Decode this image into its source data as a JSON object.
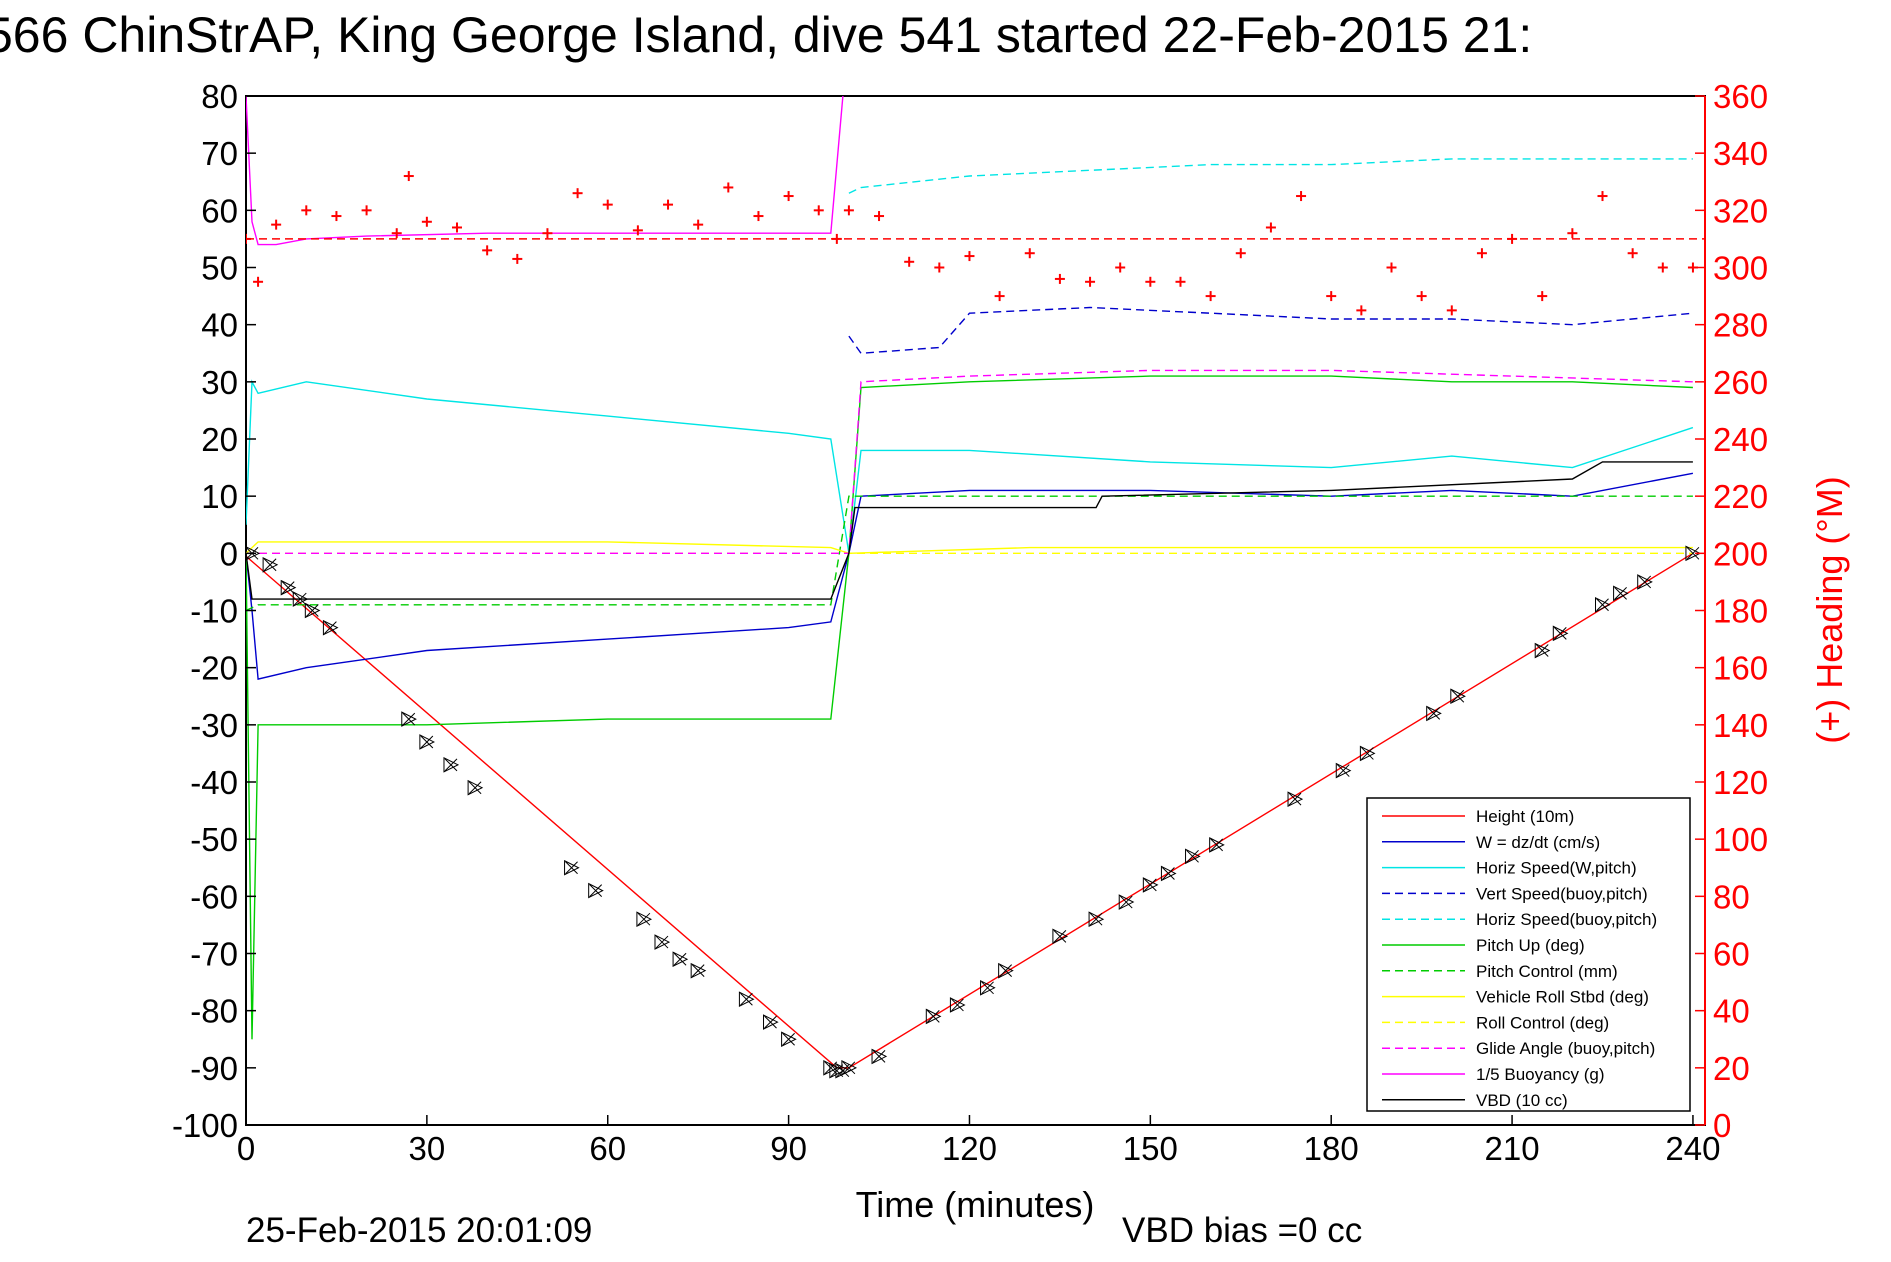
{
  "chart_data": {
    "type": "line",
    "title": "566 ChinStrAP, King George Island, dive 541 started 22-Feb-2015 21:",
    "xlabel": "Time (minutes)",
    "ylabel_right": "(+) Heading (°M)",
    "footer_date": "25-Feb-2015 20:01:09",
    "footer_bias": "VBD bias =0 cc",
    "xlim": [
      0,
      242
    ],
    "ylim": [
      -100,
      80
    ],
    "ylim_right": [
      0,
      360
    ],
    "x_ticks": [
      0,
      30,
      60,
      90,
      120,
      150,
      180,
      210,
      240
    ],
    "y_ticks": [
      80,
      70,
      60,
      50,
      40,
      30,
      20,
      10,
      0,
      -10,
      -20,
      -30,
      -40,
      -50,
      -60,
      -70,
      -80,
      -90,
      -100
    ],
    "y_ticks_right": [
      360,
      340,
      320,
      300,
      280,
      260,
      240,
      220,
      200,
      180,
      160,
      140,
      120,
      100,
      80,
      60,
      40,
      20,
      0
    ],
    "grid": false,
    "legend_position": "bottom-right",
    "series": [
      {
        "name": "Height (10m)",
        "color": "#ff0000",
        "style": "solid",
        "x": [
          0,
          98,
          100,
          240
        ],
        "y": [
          -0.5,
          -90,
          -90,
          0
        ]
      },
      {
        "name": "W = dz/dt (cm/s)",
        "color": "#0000cc",
        "style": "solid",
        "x": [
          0,
          1,
          2,
          10,
          30,
          60,
          90,
          97,
          100,
          102,
          120,
          150,
          180,
          200,
          220,
          240
        ],
        "y": [
          0,
          -10,
          -22,
          -20,
          -17,
          -15,
          -13,
          -12,
          0,
          10,
          11,
          11,
          10,
          11,
          10,
          14
        ]
      },
      {
        "name": "Horiz Speed(W,pitch)",
        "color": "#00e5e5",
        "style": "solid",
        "x": [
          0,
          1,
          2,
          10,
          30,
          60,
          90,
          97,
          100,
          102,
          120,
          150,
          180,
          200,
          220,
          240
        ],
        "y": [
          5,
          30,
          28,
          30,
          27,
          24,
          21,
          20,
          0,
          18,
          18,
          16,
          15,
          17,
          15,
          22
        ]
      },
      {
        "name": "Vert Speed(buoy,pitch)",
        "color": "#0000cc",
        "style": "dashed",
        "x": [
          100,
          102,
          115,
          120,
          140,
          160,
          180,
          200,
          220,
          240
        ],
        "y": [
          38,
          35,
          36,
          42,
          43,
          42,
          41,
          41,
          40,
          42
        ]
      },
      {
        "name": "Horiz Speed(buoy,pitch)",
        "color": "#00e5e5",
        "style": "dashed",
        "x": [
          100,
          102,
          120,
          140,
          160,
          180,
          200,
          220,
          240
        ],
        "y": [
          63,
          64,
          66,
          67,
          68,
          68,
          69,
          69,
          69
        ]
      },
      {
        "name": "Pitch Up (deg)",
        "color": "#00cc00",
        "style": "solid",
        "x": [
          0,
          1,
          2,
          10,
          30,
          60,
          90,
          97,
          100,
          102,
          120,
          150,
          180,
          200,
          220,
          240
        ],
        "y": [
          0,
          -85,
          -30,
          -30,
          -30,
          -29,
          -29,
          -29,
          0,
          29,
          30,
          31,
          31,
          30,
          30,
          29
        ]
      },
      {
        "name": "Pitch Control (mm)",
        "color": "#00cc00",
        "style": "dashed",
        "x": [
          0,
          2,
          97,
          100,
          240
        ],
        "y": [
          -10,
          -9,
          -9,
          10,
          10
        ]
      },
      {
        "name": "Vehicle Roll Stbd (deg)",
        "color": "#ffff00",
        "style": "solid",
        "x": [
          0,
          2,
          30,
          60,
          97,
          100,
          130,
          160,
          190,
          220,
          240
        ],
        "y": [
          0,
          2,
          2,
          2,
          1,
          0,
          1,
          1,
          1,
          1,
          1
        ]
      },
      {
        "name": "Roll Control (deg)",
        "color": "#ffff00",
        "style": "dashed",
        "x": [
          0,
          2,
          240
        ],
        "y": [
          0,
          0,
          0
        ]
      },
      {
        "name": "Glide Angle (buoy,pitch)",
        "color": "#ff00ff",
        "style": "dashed",
        "x": [
          0,
          97,
          100,
          102,
          120,
          150,
          180,
          210,
          240
        ],
        "y": [
          0,
          0,
          0,
          30,
          31,
          32,
          32,
          31,
          30
        ]
      },
      {
        "name": "1/5 Buoyancy (g)",
        "color": "#ff00ff",
        "style": "solid",
        "x": [
          0,
          1,
          2,
          5,
          10,
          20,
          40,
          97,
          99
        ],
        "y": [
          80,
          58,
          54,
          54,
          55,
          55.5,
          56,
          56,
          80
        ]
      },
      {
        "name": "VBD (10 cc)",
        "color": "#000000",
        "style": "solid",
        "x": [
          0,
          1,
          2,
          97,
          100,
          101,
          141,
          142,
          180,
          220,
          225,
          240
        ],
        "y": [
          0,
          -8,
          -8,
          -8,
          0,
          8,
          8,
          10,
          11,
          13,
          16,
          16
        ]
      }
    ],
    "heading_series": {
      "name": "Heading",
      "color": "#ff0000",
      "marker": "+",
      "target_heading": 310,
      "x": [
        0,
        2,
        5,
        10,
        15,
        20,
        25,
        27,
        30,
        35,
        40,
        45,
        50,
        55,
        60,
        65,
        70,
        75,
        80,
        85,
        90,
        95,
        98,
        100,
        105,
        110,
        115,
        120,
        125,
        130,
        135,
        140,
        145,
        150,
        155,
        160,
        165,
        170,
        175,
        180,
        185,
        190,
        195,
        200,
        205,
        210,
        215,
        220,
        225,
        230,
        235,
        240
      ],
      "y": [
        310,
        295,
        315,
        320,
        318,
        320,
        312,
        332,
        316,
        314,
        306,
        303,
        312,
        326,
        322,
        313,
        322,
        315,
        328,
        318,
        325,
        320,
        310,
        320,
        318,
        302,
        300,
        304,
        290,
        305,
        296,
        295,
        300,
        295,
        295,
        290,
        305,
        314,
        325,
        290,
        285,
        300,
        290,
        285,
        305,
        310,
        290,
        312,
        325,
        305,
        300,
        300
      ]
    },
    "markers": {
      "type": "triangle-x",
      "x": [
        1,
        4,
        7,
        9,
        11,
        14,
        27,
        30,
        34,
        38,
        54,
        58,
        66,
        69,
        72,
        75,
        83,
        87,
        90,
        97,
        98,
        99,
        100,
        105,
        114,
        118,
        123,
        126,
        135,
        141,
        146,
        150,
        153,
        157,
        161,
        174,
        182,
        186,
        197,
        201,
        215,
        218,
        225,
        228,
        232,
        240
      ],
      "y": [
        0,
        -2,
        -6,
        -8,
        -10,
        -13,
        -29,
        -33,
        -37,
        -41,
        -55,
        -59,
        -64,
        -68,
        -71,
        -73,
        -78,
        -82,
        -85,
        -90,
        -90.5,
        -90.5,
        -90,
        -88,
        -81,
        -79,
        -76,
        -73,
        -67,
        -64,
        -61,
        -58,
        -56,
        -53,
        -51,
        -43,
        -38,
        -35,
        -28,
        -25,
        -17,
        -14,
        -9,
        -7,
        -5,
        0
      ]
    }
  }
}
